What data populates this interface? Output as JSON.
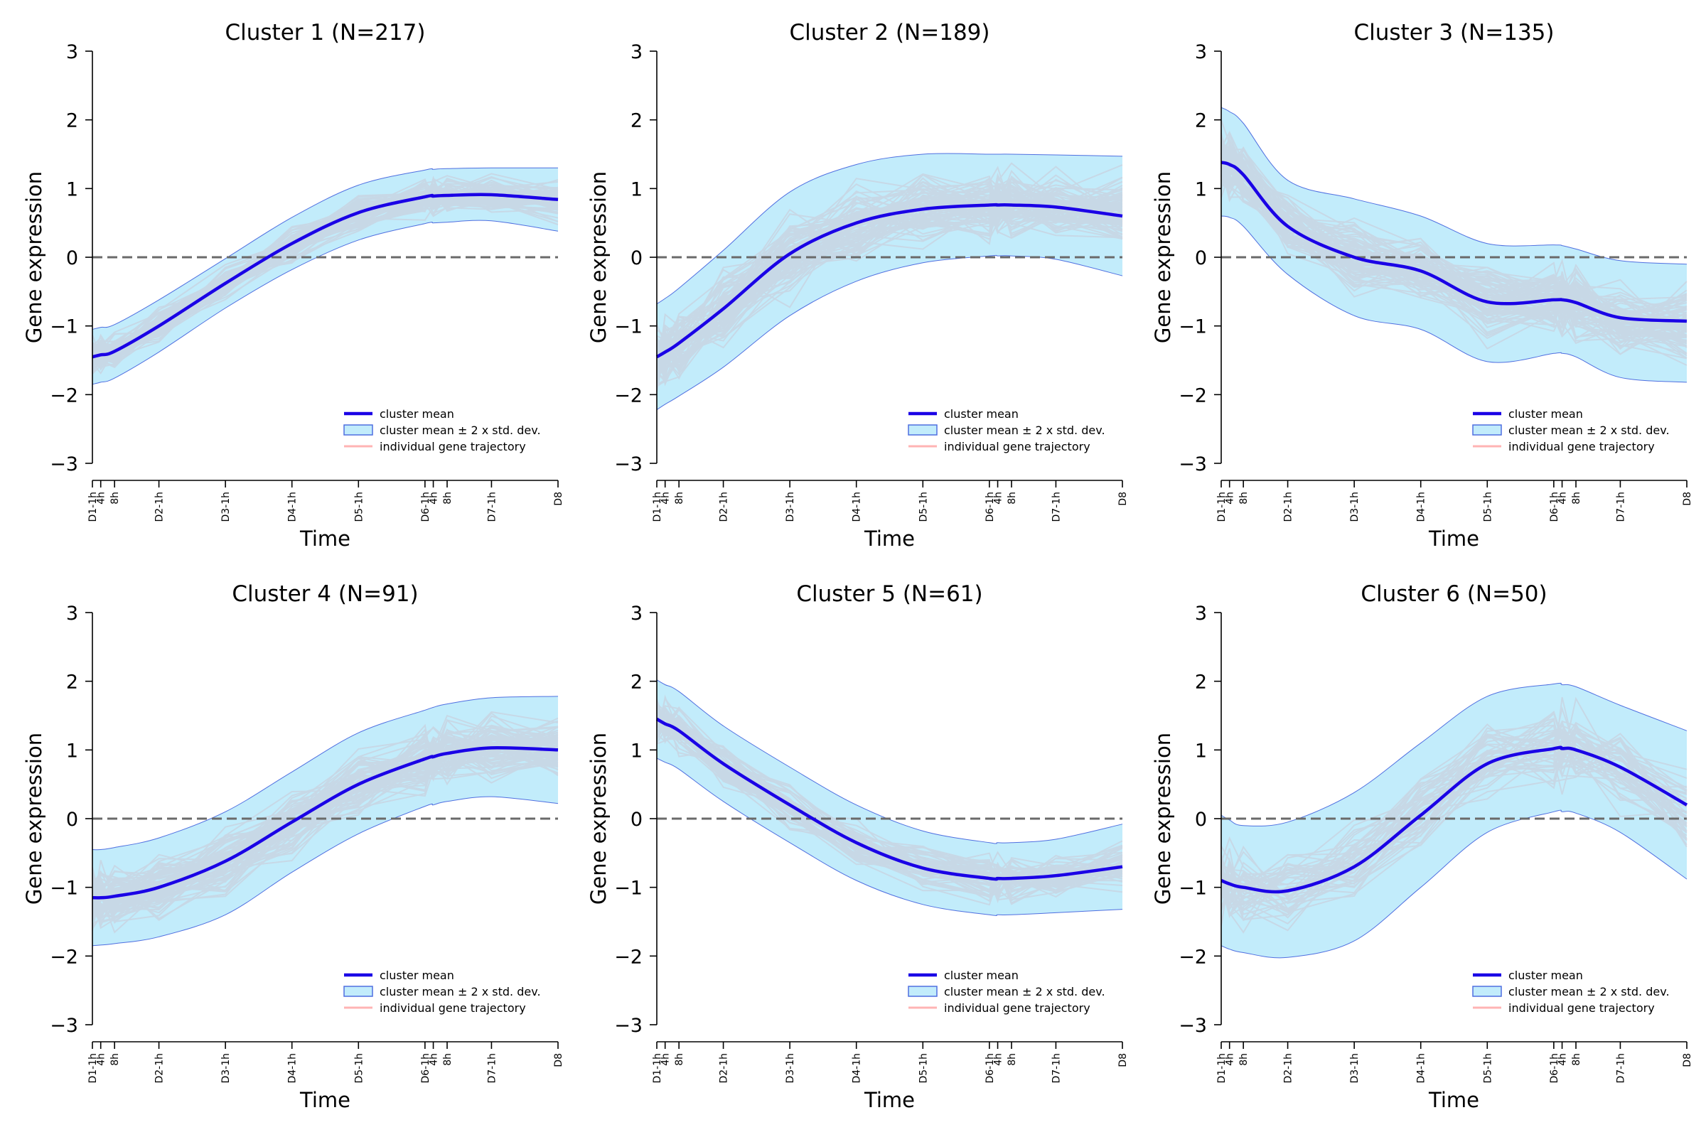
{
  "colors": {
    "mean_line": "#1a00e6",
    "band_fill": "#c2ecfb",
    "band_edge": "#4f6fe0",
    "trajectory": "#ff2020",
    "zero_line": "#6a6a6a",
    "axis": "#000000"
  },
  "legend": {
    "mean": "cluster mean",
    "band": "cluster mean ± 2 x std. dev.",
    "trajectory": "individual gene trajectory"
  },
  "chart_data": [
    {
      "type": "line",
      "title": "Cluster 1 (N=217)",
      "xlabel": "Time",
      "ylabel": "Gene expression",
      "ylim": [
        -3,
        3
      ],
      "yticks": [
        "3",
        "2",
        "1",
        "0",
        "−1",
        "−2",
        "−3"
      ],
      "x": [
        0,
        0.125,
        0.333,
        1,
        2,
        3,
        4,
        5,
        5.125,
        5.333,
        6,
        7
      ],
      "xticklabels": [
        "D1-1h",
        "4h",
        "8h",
        "D2-1h",
        "D3-1h",
        "D4-1h",
        "D5-1h",
        "D6-1h",
        "4h",
        "8h",
        "D7-1h",
        "D8"
      ],
      "reference_line": 0,
      "legend_position": "lower-right",
      "mean": [
        -1.45,
        -1.42,
        -1.37,
        -1.0,
        -0.38,
        0.2,
        0.65,
        0.88,
        0.89,
        0.9,
        0.91,
        0.84
      ],
      "band_upper": [
        -1.05,
        -1.02,
        -0.98,
        -0.62,
        -0.02,
        0.58,
        1.05,
        1.27,
        1.28,
        1.29,
        1.3,
        1.3
      ],
      "band_lower": [
        -1.85,
        -1.82,
        -1.76,
        -1.38,
        -0.74,
        -0.18,
        0.25,
        0.49,
        0.5,
        0.51,
        0.53,
        0.38
      ],
      "trajectory_count": 217
    },
    {
      "type": "line",
      "title": "Cluster 2 (N=189)",
      "xlabel": "Time",
      "ylabel": "Gene expression",
      "ylim": [
        -3,
        3
      ],
      "yticks": [
        "3",
        "2",
        "1",
        "0",
        "−1",
        "−2",
        "−3"
      ],
      "x": [
        0,
        0.125,
        0.333,
        1,
        2,
        3,
        4,
        5,
        5.125,
        5.333,
        6,
        7
      ],
      "xticklabels": [
        "D1-1h",
        "4h",
        "8h",
        "D2-1h",
        "D3-1h",
        "D4-1h",
        "D5-1h",
        "D6-1h",
        "4h",
        "8h",
        "D7-1h",
        "D8"
      ],
      "reference_line": 0,
      "legend_position": "lower-right",
      "mean": [
        -1.45,
        -1.38,
        -1.25,
        -0.75,
        0.05,
        0.5,
        0.7,
        0.76,
        0.76,
        0.76,
        0.73,
        0.6
      ],
      "band_upper": [
        -0.68,
        -0.6,
        -0.45,
        0.1,
        0.95,
        1.35,
        1.5,
        1.5,
        1.5,
        1.5,
        1.49,
        1.47
      ],
      "band_lower": [
        -2.22,
        -2.14,
        -2.02,
        -1.6,
        -0.85,
        -0.35,
        -0.08,
        0.02,
        0.02,
        0.02,
        -0.03,
        -0.27
      ],
      "trajectory_count": 189
    },
    {
      "type": "line",
      "title": "Cluster 3 (N=135)",
      "xlabel": "Time",
      "ylabel": "Gene expression",
      "ylim": [
        -3,
        3
      ],
      "yticks": [
        "3",
        "2",
        "1",
        "0",
        "−1",
        "−2",
        "−3"
      ],
      "x": [
        0,
        0.125,
        0.333,
        1,
        2,
        3,
        4,
        5,
        5.125,
        5.333,
        6,
        7
      ],
      "xticklabels": [
        "D1-1h",
        "4h",
        "8h",
        "D2-1h",
        "D3-1h",
        "D4-1h",
        "D5-1h",
        "D6-1h",
        "4h",
        "8h",
        "D7-1h",
        "D8"
      ],
      "reference_line": 0,
      "legend_position": "lower-right",
      "mean": [
        1.38,
        1.35,
        1.2,
        0.45,
        0.0,
        -0.2,
        -0.65,
        -0.62,
        -0.62,
        -0.66,
        -0.88,
        -0.93
      ],
      "band_upper": [
        2.18,
        2.12,
        1.95,
        1.12,
        0.85,
        0.6,
        0.2,
        0.18,
        0.17,
        0.12,
        -0.05,
        -0.1
      ],
      "band_lower": [
        0.6,
        0.58,
        0.45,
        -0.25,
        -0.85,
        -1.05,
        -1.52,
        -1.4,
        -1.4,
        -1.45,
        -1.75,
        -1.82
      ],
      "trajectory_count": 135
    },
    {
      "type": "line",
      "title": "Cluster 4 (N=91)",
      "xlabel": "Time",
      "ylabel": "Gene expression",
      "ylim": [
        -3,
        3
      ],
      "yticks": [
        "3",
        "2",
        "1",
        "0",
        "−1",
        "−2",
        "−3"
      ],
      "x": [
        0,
        0.125,
        0.333,
        1,
        2,
        3,
        4,
        5,
        5.125,
        5.333,
        6,
        7
      ],
      "xticklabels": [
        "D1-1h",
        "4h",
        "8h",
        "D2-1h",
        "D3-1h",
        "D4-1h",
        "D5-1h",
        "D6-1h",
        "4h",
        "8h",
        "D7-1h",
        "D8"
      ],
      "reference_line": 0,
      "legend_position": "lower-right",
      "mean": [
        -1.15,
        -1.15,
        -1.13,
        -1.0,
        -0.62,
        -0.05,
        0.5,
        0.87,
        0.9,
        0.95,
        1.03,
        1.0
      ],
      "band_upper": [
        -0.45,
        -0.45,
        -0.42,
        -0.28,
        0.1,
        0.68,
        1.25,
        1.58,
        1.62,
        1.67,
        1.76,
        1.78
      ],
      "band_lower": [
        -1.85,
        -1.84,
        -1.82,
        -1.72,
        -1.4,
        -0.78,
        -0.22,
        0.18,
        0.2,
        0.25,
        0.32,
        0.22
      ],
      "trajectory_count": 91
    },
    {
      "type": "line",
      "title": "Cluster 5 (N=61)",
      "xlabel": "Time",
      "ylabel": "Gene expression",
      "ylim": [
        -3,
        3
      ],
      "yticks": [
        "3",
        "2",
        "1",
        "0",
        "−1",
        "−2",
        "−3"
      ],
      "x": [
        0,
        0.125,
        0.333,
        1,
        2,
        3,
        4,
        5,
        5.125,
        5.333,
        6,
        7
      ],
      "xticklabels": [
        "D1-1h",
        "4h",
        "8h",
        "D2-1h",
        "D3-1h",
        "D4-1h",
        "D5-1h",
        "D6-1h",
        "4h",
        "8h",
        "D7-1h",
        "D8"
      ],
      "reference_line": 0,
      "legend_position": "lower-right",
      "mean": [
        1.45,
        1.38,
        1.28,
        0.8,
        0.2,
        -0.35,
        -0.72,
        -0.87,
        -0.87,
        -0.87,
        -0.83,
        -0.7
      ],
      "band_upper": [
        2.02,
        1.95,
        1.85,
        1.35,
        0.75,
        0.2,
        -0.18,
        -0.35,
        -0.35,
        -0.35,
        -0.3,
        -0.08
      ],
      "band_lower": [
        0.88,
        0.82,
        0.72,
        0.25,
        -0.35,
        -0.9,
        -1.25,
        -1.4,
        -1.4,
        -1.4,
        -1.37,
        -1.32
      ],
      "trajectory_count": 61
    },
    {
      "type": "line",
      "title": "Cluster 6 (N=50)",
      "xlabel": "Time",
      "ylabel": "Gene expression",
      "ylim": [
        -3,
        3
      ],
      "yticks": [
        "3",
        "2",
        "1",
        "0",
        "−1",
        "−2",
        "−3"
      ],
      "x": [
        0,
        0.125,
        0.333,
        1,
        2,
        3,
        4,
        5,
        5.125,
        5.333,
        6,
        7
      ],
      "xticklabels": [
        "D1-1h",
        "4h",
        "8h",
        "D2-1h",
        "D3-1h",
        "D4-1h",
        "D5-1h",
        "D6-1h",
        "4h",
        "8h",
        "D7-1h",
        "D8"
      ],
      "reference_line": 0,
      "legend_position": "lower-right",
      "mean": [
        -0.9,
        -0.95,
        -1.0,
        -1.05,
        -0.7,
        0.05,
        0.8,
        1.02,
        1.02,
        1.0,
        0.75,
        0.2
      ],
      "band_upper": [
        0.05,
        -0.02,
        -0.1,
        -0.05,
        0.38,
        1.1,
        1.78,
        1.96,
        1.95,
        1.92,
        1.65,
        1.28
      ],
      "band_lower": [
        -1.85,
        -1.9,
        -1.95,
        -2.02,
        -1.78,
        -1.0,
        -0.2,
        0.1,
        0.1,
        0.08,
        -0.2,
        -0.88
      ],
      "trajectory_count": 50
    }
  ]
}
